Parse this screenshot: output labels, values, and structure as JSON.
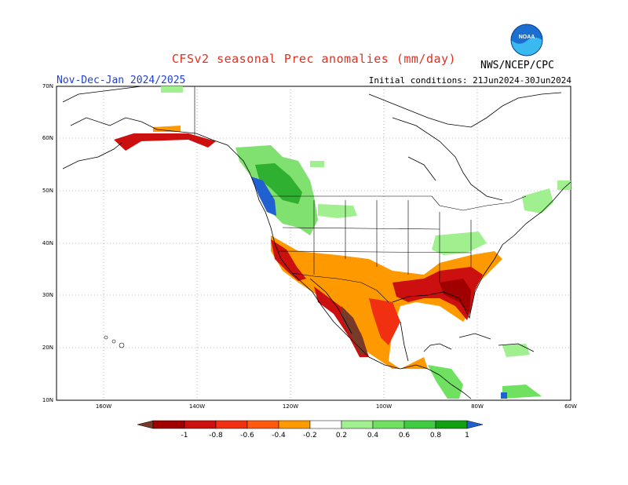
{
  "header": {
    "title": "CFSv2 seasonal Prec anomalies (mm/day)",
    "season": "Nov-Dec-Jan 2024/2025",
    "initial_conditions": "Initial conditions: 21Jun2024-30Jun2024",
    "agency": "NWS/NCEP/CPC",
    "logo_text": "NOAA"
  },
  "map": {
    "lat_ticks": [
      "70N",
      "60N",
      "50N",
      "40N",
      "30N",
      "20N",
      "10N"
    ],
    "lon_ticks": [
      "160W",
      "140W",
      "120W",
      "100W",
      "80W",
      "60W"
    ],
    "colors": {
      "land_outline": "#000000",
      "grid": "#888888"
    }
  },
  "colorbar": {
    "labels": [
      "-1",
      "-0.8",
      "-0.6",
      "-0.4",
      "-0.2",
      "0.2",
      "0.4",
      "0.6",
      "0.8",
      "1"
    ],
    "colors": [
      "#7a3a2a",
      "#a00000",
      "#cc1010",
      "#f03010",
      "#ff5a10",
      "#ff9900",
      "#ffffff",
      "#a0f090",
      "#70e060",
      "#40cc40",
      "#10a010",
      "#2060d0"
    ]
  }
}
